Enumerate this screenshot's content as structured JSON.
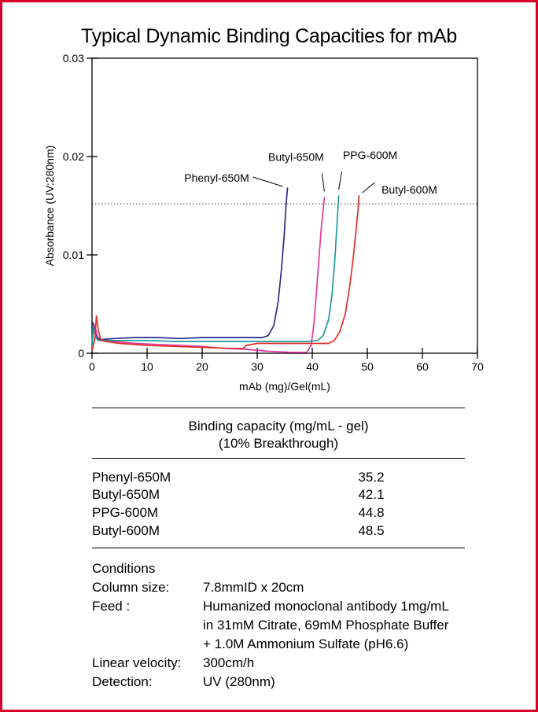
{
  "chart_data": {
    "type": "line",
    "title": "Typical Dynamic Binding Capacities for mAb",
    "xlabel": "mAb (mg)/Gel(mL)",
    "ylabel": "Absorbance (UV:280nm)",
    "xlim": [
      0,
      70
    ],
    "ylim": [
      0,
      0.03
    ],
    "x_ticks": [
      0,
      10,
      20,
      30,
      40,
      50,
      60,
      70
    ],
    "y_ticks": [
      0,
      0.01,
      0.02,
      0.03
    ],
    "x_tick_labels": [
      "0",
      "10",
      "20",
      "30",
      "40",
      "50",
      "60",
      "70"
    ],
    "y_tick_labels": [
      "0",
      "0.01",
      "0.02",
      "0.03"
    ],
    "grid": false,
    "reference_line": {
      "y": 0.0152,
      "style": "dotted"
    },
    "series": [
      {
        "name": "Phenyl-650M",
        "color": "#2b2b8c",
        "x": [
          0,
          0.2,
          0.4,
          0.6,
          0.9,
          1.2,
          2,
          4,
          8,
          12,
          16,
          20,
          24,
          28,
          31,
          32,
          33,
          33.8,
          34.4,
          34.9,
          35.2,
          35.5
        ],
        "y": [
          0.0005,
          0.0031,
          0.0028,
          0.002,
          0.0016,
          0.0014,
          0.0014,
          0.0015,
          0.0016,
          0.0016,
          0.0015,
          0.0016,
          0.0016,
          0.0016,
          0.0016,
          0.0018,
          0.0028,
          0.0052,
          0.0085,
          0.012,
          0.0148,
          0.0168
        ]
      },
      {
        "name": "Butyl-650M",
        "color": "#e23a9e",
        "x": [
          0,
          0.3,
          0.6,
          1,
          2,
          4,
          8,
          12,
          16,
          20,
          24,
          28,
          32,
          36,
          39,
          39.8,
          40.3,
          40.8,
          41.2,
          41.6,
          42,
          42.2
        ],
        "y": [
          0.0004,
          0.003,
          0.0026,
          0.0017,
          0.0013,
          0.0012,
          0.001,
          0.0009,
          0.0008,
          0.0007,
          0.0005,
          0.0004,
          0.0002,
          0.0001,
          0.0001,
          0.0008,
          0.003,
          0.0065,
          0.0095,
          0.0125,
          0.0148,
          0.0158
        ]
      },
      {
        "name": "PPG-600M",
        "color": "#1f9a9a",
        "x": [
          0,
          0.2,
          0.5,
          0.8,
          1.2,
          2,
          5,
          10,
          15,
          20,
          25,
          30,
          35,
          39,
          41,
          42,
          43,
          43.6,
          44.1,
          44.5,
          44.8
        ],
        "y": [
          0.0003,
          0.0028,
          0.002,
          0.0015,
          0.0013,
          0.0013,
          0.0013,
          0.0013,
          0.0012,
          0.0012,
          0.0012,
          0.0012,
          0.0012,
          0.0012,
          0.0013,
          0.0018,
          0.0035,
          0.006,
          0.0095,
          0.0132,
          0.016
        ]
      },
      {
        "name": "Butyl-600M",
        "color": "#e0302a",
        "x": [
          0,
          0.5,
          0.8,
          1.1,
          1.6,
          2.5,
          5,
          10,
          15,
          20,
          25,
          27.5,
          28,
          30,
          35,
          40,
          43,
          44,
          45,
          46,
          46.8,
          47.4,
          47.9,
          48.3,
          48.5
        ],
        "y": [
          0.0003,
          0.0014,
          0.0038,
          0.0025,
          0.0013,
          0.0012,
          0.001,
          0.0008,
          0.0007,
          0.0006,
          0.0005,
          0.0005,
          0.0008,
          0.001,
          0.001,
          0.001,
          0.001,
          0.0013,
          0.0022,
          0.004,
          0.0068,
          0.0095,
          0.0122,
          0.0145,
          0.016
        ]
      }
    ],
    "annotations": [
      {
        "text": "Phenyl-650M",
        "series": "Phenyl-650M"
      },
      {
        "text": "Butyl-650M",
        "series": "Butyl-650M"
      },
      {
        "text": "PPG-600M",
        "series": "PPG-600M"
      },
      {
        "text": "Butyl-600M",
        "series": "Butyl-600M"
      }
    ]
  },
  "table": {
    "header_line1": "Binding capacity (mg/mL - gel)",
    "header_line2": "(10% Breakthrough)",
    "rows": [
      {
        "name": "Phenyl-650M",
        "value": "35.2"
      },
      {
        "name": "Butyl-650M",
        "value": "42.1"
      },
      {
        "name": "PPG-600M",
        "value": "44.8"
      },
      {
        "name": "Butyl-600M",
        "value": "48.5"
      }
    ]
  },
  "conditions": {
    "heading": "Conditions",
    "column_label": "Column size:",
    "column_value": "7.8mmID x 20cm",
    "feed_label": "Feed :",
    "feed_line1": "Humanized monoclonal antibody 1mg/mL",
    "feed_line2": "in 31mM Citrate, 69mM Phosphate Buffer",
    "feed_line3": "+ 1.0M Ammonium Sulfate (pH6.6)",
    "velocity_label": "Linear velocity:",
    "velocity_value": "300cm/h",
    "detection_label": "Detection:",
    "detection_value": "UV (280nm)"
  },
  "colors": {
    "frame": "#d6002a"
  }
}
